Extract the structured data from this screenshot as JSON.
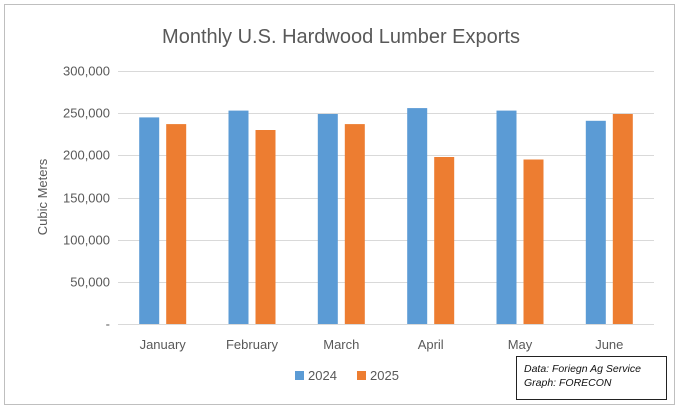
{
  "chart_data": {
    "type": "bar",
    "title": "Monthly U.S. Hardwood Lumber Exports",
    "xlabel": "",
    "ylabel": "Cubic Meters",
    "categories": [
      "January",
      "February",
      "March",
      "April",
      "May",
      "June"
    ],
    "series": [
      {
        "name": "2024",
        "color": "#5B9BD5",
        "values": [
          245000,
          253000,
          249000,
          256000,
          253000,
          241000
        ]
      },
      {
        "name": "2025",
        "color": "#ED7D31",
        "values": [
          237000,
          230000,
          237000,
          198000,
          195000,
          249000
        ]
      }
    ],
    "ylim": [
      0,
      300000
    ],
    "yticks": [
      0,
      50000,
      100000,
      150000,
      200000,
      250000,
      300000
    ],
    "ytick_labels": [
      "-",
      "50,000",
      "100,000",
      "150,000",
      "200,000",
      "250,000",
      "300,000"
    ],
    "grid": true,
    "legend_position": "bottom"
  },
  "source_note": {
    "line1": "Data: Foriegn Ag Service",
    "line2": "Graph: FORECON"
  },
  "colors": {
    "text": "#595959",
    "grid": "#D9D9D9",
    "frame": "#BFBFBF"
  }
}
